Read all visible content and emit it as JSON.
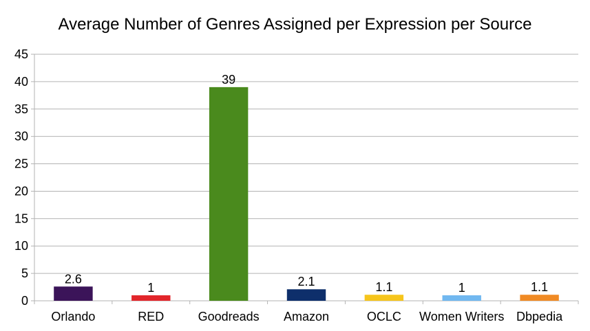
{
  "chart_data": {
    "type": "bar",
    "title": "Average Number of Genres Assigned per Expression per Source",
    "categories": [
      "Orlando",
      "RED",
      "Goodreads",
      "Amazon",
      "OCLC",
      "Women Writers",
      "Dbpedia"
    ],
    "values": [
      2.6,
      1,
      39,
      2.1,
      1.1,
      1,
      1.1
    ],
    "data_labels": [
      "2.6",
      "1",
      "39",
      "2.1",
      "1.1",
      "1",
      "1.1"
    ],
    "colors": [
      "#3b1459",
      "#e2262b",
      "#4a8a1d",
      "#0e2f6b",
      "#f6c51c",
      "#71b8f0",
      "#f08a24"
    ],
    "ylim": [
      0,
      45
    ],
    "yticks": [
      0,
      5,
      10,
      15,
      20,
      25,
      30,
      35,
      40,
      45
    ],
    "grid": true,
    "legend": "none",
    "xlabel": "",
    "ylabel": ""
  }
}
